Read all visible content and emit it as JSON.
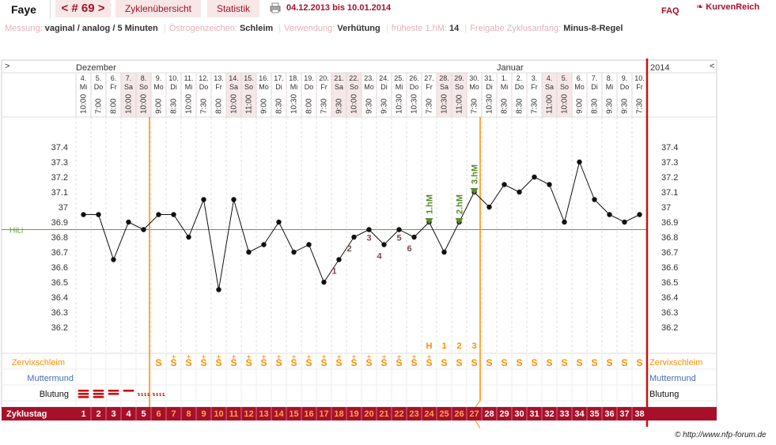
{
  "header": {
    "user": "Faye",
    "cycle_label": "< # 69 >",
    "tab_overview": "Zyklenübersicht",
    "tab_stats": "Statistik",
    "date_range": "04.12.2013 bis 10.01.2014",
    "faq": "FAQ",
    "logo": "KurvenReich",
    "print_icon": "printer-icon"
  },
  "info": [
    {
      "label": "Messung:",
      "value": "vaginal / analog / 5 Minuten"
    },
    {
      "label": "Östrogenzeichen:",
      "value": "Schleim"
    },
    {
      "label": "Verwendung:",
      "value": "Verhütung"
    },
    {
      "label": "früheste 1.hM:",
      "value": "14"
    },
    {
      "label": "Freigabe Zyklusanfang:",
      "value": "Minus-8-Regel"
    }
  ],
  "chart": {
    "left_arrow": ">",
    "right_arrow": "<",
    "month_dec": "Dezember",
    "month_jan": "Januar",
    "year_right": "2014",
    "hili_label": "HiLi",
    "hili_value": 36.85,
    "y_ticks": [
      "37.4",
      "37.3",
      "37.2",
      "37.1",
      "37",
      "36.9",
      "36.8",
      "36.7",
      "36.6",
      "36.5",
      "36.4",
      "36.3",
      "36.2"
    ],
    "y_tick_values": [
      37.4,
      37.3,
      37.2,
      37.1,
      37.0,
      36.9,
      36.8,
      36.7,
      36.6,
      36.5,
      36.4,
      36.3,
      36.2
    ],
    "shaded_columns": [
      3,
      4,
      10,
      11,
      17,
      18,
      24,
      25,
      31,
      32
    ],
    "days": [
      {
        "d": "4.",
        "w": "Mi",
        "t": "10:00"
      },
      {
        "d": "5.",
        "w": "Do",
        "t": "7:00"
      },
      {
        "d": "6.",
        "w": "Fr",
        "t": "8:00"
      },
      {
        "d": "7.",
        "w": "Sa",
        "t": "10:00"
      },
      {
        "d": "8.",
        "w": "So",
        "t": "10:00"
      },
      {
        "d": "9.",
        "w": "Mo",
        "t": "9:00"
      },
      {
        "d": "10.",
        "w": "Di",
        "t": "8:30"
      },
      {
        "d": "11.",
        "w": "Mi",
        "t": "10:00"
      },
      {
        "d": "12.",
        "w": "Do",
        "t": "7:30"
      },
      {
        "d": "13.",
        "w": "Fr",
        "t": "8:00"
      },
      {
        "d": "14.",
        "w": "Sa",
        "t": "10:00"
      },
      {
        "d": "15.",
        "w": "So",
        "t": "11:00"
      },
      {
        "d": "16.",
        "w": "Mo",
        "t": "9:00"
      },
      {
        "d": "17.",
        "w": "Di",
        "t": "8:30"
      },
      {
        "d": "18.",
        "w": "Mi",
        "t": "10:30"
      },
      {
        "d": "19.",
        "w": "Do",
        "t": "8:00"
      },
      {
        "d": "20.",
        "w": "Fr",
        "t": "7:30"
      },
      {
        "d": "21.",
        "w": "Sa",
        "t": "9:30"
      },
      {
        "d": "22.",
        "w": "So",
        "t": "10:00"
      },
      {
        "d": "23.",
        "w": "Mo",
        "t": "9:30"
      },
      {
        "d": "24.",
        "w": "Di",
        "t": "9:30"
      },
      {
        "d": "25.",
        "w": "Mi",
        "t": "10:30"
      },
      {
        "d": "26.",
        "w": "Do",
        "t": "10:30"
      },
      {
        "d": "27.",
        "w": "Fr",
        "t": "7:30"
      },
      {
        "d": "28.",
        "w": "Sa",
        "t": "10:30"
      },
      {
        "d": "29.",
        "w": "So",
        "t": "11:00"
      },
      {
        "d": "30.",
        "w": "Mo",
        "t": "7:30"
      },
      {
        "d": "31.",
        "w": "Di",
        "t": "10:30"
      },
      {
        "d": "1.",
        "w": "Mi",
        "t": "8:30"
      },
      {
        "d": "2.",
        "w": "Do",
        "t": "8:30"
      },
      {
        "d": "3.",
        "w": "Fr",
        "t": "7:30"
      },
      {
        "d": "4.",
        "w": "Sa",
        "t": "11:00"
      },
      {
        "d": "5.",
        "w": "So",
        "t": "10:00"
      },
      {
        "d": "6.",
        "w": "Mo",
        "t": "9:00"
      },
      {
        "d": "7.",
        "w": "Di",
        "t": "8:30"
      },
      {
        "d": "8.",
        "w": "Mi",
        "t": "9:30"
      },
      {
        "d": "9.",
        "w": "Do",
        "t": "9:30"
      },
      {
        "d": "10.",
        "w": "Fr",
        "t": "7:30"
      }
    ],
    "temps": [
      36.95,
      36.95,
      36.65,
      36.9,
      36.85,
      36.95,
      36.95,
      36.8,
      37.05,
      36.45,
      37.05,
      36.7,
      36.75,
      36.9,
      36.7,
      36.75,
      36.5,
      36.65,
      36.8,
      36.85,
      36.75,
      36.85,
      36.8,
      36.9,
      36.7,
      36.9,
      37.1,
      37.0,
      37.15,
      37.1,
      37.2,
      37.15,
      36.9,
      37.3,
      37.05,
      36.95,
      36.9,
      36.95
    ],
    "low_labels": [
      {
        "day": 17,
        "text": "1",
        "below": true
      },
      {
        "day": 18,
        "text": "2",
        "below": true
      },
      {
        "day": 19,
        "text": "3",
        "below": false
      },
      {
        "day": 20,
        "text": "4",
        "below": true
      },
      {
        "day": 21,
        "text": "5",
        "below": false
      },
      {
        "day": 22,
        "text": "6",
        "below": true
      }
    ],
    "high_markers": [
      {
        "day": 23,
        "text": "1.hM"
      },
      {
        "day": 25,
        "text": "2.hM"
      },
      {
        "day": 26,
        "text": "3.hM"
      }
    ],
    "mucus_counts": [
      {
        "day": 23,
        "text": "H"
      },
      {
        "day": 24,
        "text": "1"
      },
      {
        "day": 25,
        "text": "2"
      },
      {
        "day": 26,
        "text": "3"
      }
    ],
    "row_label_cervix": "Zervixschleim",
    "row_label_cervix_pos": "Muttermund",
    "row_label_bleeding": "Blutung",
    "mucus_symbols": [
      "",
      "",
      "",
      "",
      "",
      "S",
      "S",
      "S",
      "S",
      "S",
      "S",
      "S",
      "S",
      "S",
      "S",
      "S",
      "S",
      "S",
      "S",
      "S",
      "S",
      "S",
      "S",
      "S",
      "S",
      "S",
      "S",
      "S",
      "S",
      "S",
      "S",
      "S",
      "S",
      "S",
      "S",
      "S",
      "S",
      "S"
    ],
    "mucus_plus": [
      false,
      false,
      false,
      false,
      false,
      false,
      true,
      true,
      true,
      true,
      true,
      true,
      true,
      true,
      true,
      true,
      true,
      true,
      true,
      true,
      true,
      true,
      true,
      true,
      false,
      false,
      false,
      false,
      false,
      false,
      false,
      false,
      false,
      false,
      false,
      false,
      false,
      false
    ],
    "bleeding": [
      3,
      3,
      2,
      1,
      0.5,
      0.5,
      0,
      0,
      0,
      0,
      0,
      0,
      0,
      0,
      0,
      0,
      0,
      0,
      0,
      0,
      0,
      0,
      0,
      0,
      0,
      0,
      0,
      0,
      0,
      0,
      0,
      0,
      0,
      0,
      0,
      0,
      0,
      0
    ],
    "cycle_day_label": "Zyklustag",
    "cycle_days": [
      "1",
      "2",
      "3",
      "4",
      "5",
      "6",
      "7",
      "8",
      "9",
      "10",
      "11",
      "12",
      "13",
      "14",
      "15",
      "16",
      "17",
      "18",
      "19",
      "20",
      "21",
      "22",
      "23",
      "24",
      "25",
      "26",
      "27",
      "28",
      "29",
      "30",
      "31",
      "32",
      "33",
      "34",
      "35",
      "36",
      "37",
      "38"
    ],
    "orange_line_after_day": 5,
    "temp_eval_line_day": 26,
    "colors": {
      "accent": "#a8102a",
      "orange": "#ff8c00",
      "green": "#5a8a2a",
      "hili": "#6a9a3a",
      "grid": "#cccccc",
      "shade": "#f6e8e8",
      "cycle_bar": "#a8102a",
      "mucus": "#ff8c00",
      "low_label": "#7a4a4a"
    }
  },
  "footer": {
    "copyright": "© http://www.nfp-forum.de"
  }
}
